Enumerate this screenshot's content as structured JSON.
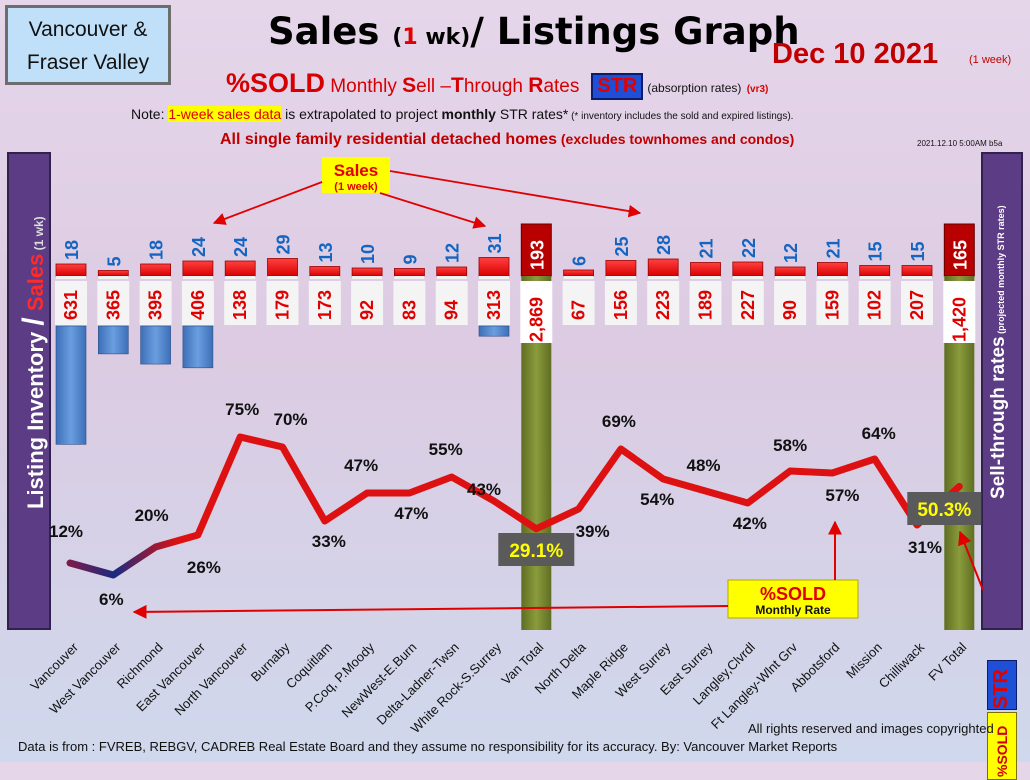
{
  "header": {
    "region_line1": "Vancouver &",
    "region_line2": "Fraser Valley",
    "title_part1": "Sales ",
    "title_paren_open": "(",
    "title_one": "1",
    "title_wk": " wk)",
    "title_part2": "/ Listings Graph",
    "date": "Dec  10  2021",
    "date_note": "(1 week)",
    "subtitle_sold": "%SOLD",
    "subtitle_monthly": " Monthly ",
    "subtitle_s": "S",
    "subtitle_ell": "ell –",
    "subtitle_t": "T",
    "subtitle_hrough": "hrough ",
    "subtitle_r": "R",
    "subtitle_ates": "ates",
    "str_chip": "STR",
    "absorption": "(absorption rates)",
    "version": "(vr3)",
    "note_prefix": "Note: ",
    "note_highlight": "1-week sales data",
    "note_mid": " is extrapolated to project ",
    "note_bold": "monthly",
    "note_suffix": " STR rates*",
    "note_small": " (* inventory includes the sold and expired listings).",
    "scope_main": "All single family residential detached homes",
    "scope_paren": " (excludes townhomes and condos)",
    "stamp": "2021.12.10 5:00AM b5a"
  },
  "left_axis": {
    "part1": "Listing Inventory ",
    "slash": "/",
    "part2": " Sales",
    "unit": " (1 wk)"
  },
  "right_axis": {
    "label": "Sell-through rates",
    "note": " (projected monthly STR rates)",
    "chip": "STR",
    "sold": "%SOLD"
  },
  "annotations": {
    "sales_line1": "Sales",
    "sales_line2": "(1 week)",
    "sold_line1": "%SOLD",
    "sold_line2": "Monthly Rate"
  },
  "footer": {
    "rights": "All rights reserved and  images copyrighted",
    "source": "Data is from : FVREB, REBGV, CADREB Real Estate Board and they assume no responsibility for its accuracy. By: Vancouver Market Reports"
  },
  "colors": {
    "sales_bar": "#ff0000",
    "total_sales_bar": "#b80000",
    "inventory_bar": "#4f86cf",
    "total_bar": "#7a8a30",
    "str_line": "#dd1111",
    "label_blue": "#1565c0",
    "label_red": "#e00000"
  },
  "chart_data": {
    "type": "bar",
    "categories": [
      "Vancouver",
      "West Vancouver",
      "Richmond",
      "East Vancouver",
      "North Vancouver",
      "Burnaby",
      "Coquitlam",
      "P.Coq, P.Moody",
      "NewWest-E.Burn",
      "Delta-Ladner-Twsn",
      "White Rock-S.Surrey",
      "Van Total",
      "North Delta",
      "Maple Ridge",
      "West Surrey",
      "East Surrey",
      "Langley,Clvrdl",
      "Ft Langley-Wlnt Grv",
      "Abbotsford",
      "Mission",
      "Chilliwack",
      "FV Total"
    ],
    "series": [
      {
        "name": "Sales",
        "values": [
          18,
          5,
          18,
          24,
          24,
          29,
          13,
          10,
          9,
          12,
          31,
          193,
          6,
          25,
          28,
          21,
          22,
          12,
          21,
          15,
          15,
          165
        ]
      },
      {
        "name": "Listing Inventory",
        "values": [
          631,
          365,
          395,
          406,
          138,
          179,
          173,
          92,
          83,
          94,
          313,
          2869,
          67,
          156,
          223,
          189,
          227,
          90,
          159,
          102,
          207,
          1420
        ]
      },
      {
        "name": "%SOLD Monthly Rate",
        "values": [
          12,
          6,
          20,
          26,
          75,
          70,
          33,
          47,
          47,
          55,
          43,
          29.1,
          39,
          69,
          54,
          48,
          42,
          58,
          57,
          64,
          31,
          50.3
        ]
      }
    ],
    "inventory_labels": [
      "631",
      "365",
      "395",
      "406",
      "138",
      "179",
      "173",
      "92",
      "83",
      "94",
      "313",
      "2,869",
      "67",
      "156",
      "223",
      "189",
      "227",
      "90",
      "159",
      "102",
      "207",
      "1,420"
    ],
    "str_labels": [
      "12%",
      "6%",
      "20%",
      "26%",
      "75%",
      "70%",
      "33%",
      "47%",
      "47%",
      "55%",
      "43%",
      "29.1%",
      "39%",
      "69%",
      "54%",
      "48%",
      "42%",
      "58%",
      "57%",
      "64%",
      "31%",
      "50.3%"
    ],
    "title": "Sales (1 wk)/ Listings Graph",
    "ylabel_left": "Listing Inventory / Sales (1 wk)",
    "ylabel_right": "Sell-through rates (projected monthly STR rates)",
    "y_str_range": [
      0,
      100
    ]
  }
}
